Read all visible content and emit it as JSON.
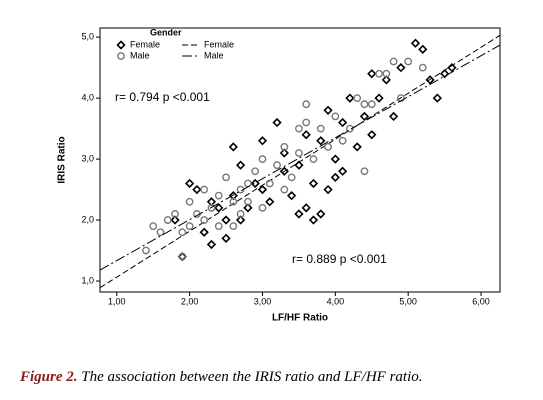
{
  "chart_data": {
    "type": "scatter",
    "xlabel": "LF/HF Ratio",
    "ylabel": "IRIS Ratio",
    "xlim": [
      0.77,
      6.26
    ],
    "ylim": [
      0.82,
      5.15
    ],
    "xticks": [
      {
        "value": 1,
        "label": "1,00"
      },
      {
        "value": 2,
        "label": "2,00"
      },
      {
        "value": 3,
        "label": "3,00"
      },
      {
        "value": 4,
        "label": "4,00"
      },
      {
        "value": 5,
        "label": "5,00"
      },
      {
        "value": 6,
        "label": "6,00"
      }
    ],
    "yticks": [
      {
        "value": 1,
        "label": "1,0"
      },
      {
        "value": 2,
        "label": "2,0"
      },
      {
        "value": 3,
        "label": "3,0"
      },
      {
        "value": 4,
        "label": "4,0"
      },
      {
        "value": 5,
        "label": "5,0"
      }
    ],
    "legend_title": "Gender",
    "annotations": [
      "r= 0.794   p <0.001",
      "r= 0.889   p <0.001"
    ],
    "series": [
      {
        "name": "Female",
        "marker": "diamond",
        "color": "#000000",
        "dash": "6,3",
        "x": [
          2.0,
          2.1,
          2.2,
          2.3,
          2.4,
          2.5,
          2.6,
          2.6,
          2.7,
          2.8,
          2.9,
          3.0,
          3.1,
          3.2,
          3.3,
          3.4,
          3.5,
          3.5,
          3.6,
          3.6,
          3.7,
          3.8,
          3.8,
          3.9,
          4.0,
          4.0,
          4.1,
          4.2,
          4.3,
          4.4,
          4.5,
          4.5,
          4.7,
          4.8,
          4.9,
          5.1,
          5.2,
          5.3,
          5.5,
          5.6,
          5.4,
          1.8,
          1.9,
          2.3,
          2.7,
          3.0,
          3.3,
          3.7,
          4.1,
          2.5,
          4.6,
          3.9
        ],
        "values": [
          2.6,
          2.5,
          1.8,
          1.6,
          2.2,
          2.0,
          3.2,
          2.4,
          2.9,
          2.2,
          2.6,
          2.5,
          2.3,
          3.6,
          3.1,
          2.4,
          2.9,
          2.1,
          3.4,
          2.2,
          2.6,
          3.3,
          2.1,
          3.8,
          3.0,
          2.7,
          3.6,
          4.0,
          3.2,
          3.7,
          3.4,
          4.4,
          4.3,
          3.7,
          4.5,
          4.9,
          4.8,
          4.3,
          4.4,
          4.5,
          4.0,
          2.0,
          1.4,
          2.3,
          2.0,
          3.3,
          2.8,
          2.0,
          2.8,
          1.7,
          4.0,
          2.5
        ],
        "fit_x": [
          0.77,
          6.26
        ],
        "fit_y": [
          0.89,
          5.03
        ]
      },
      {
        "name": "Male",
        "marker": "circle",
        "color": "#777777",
        "dash": "10,3,2,3",
        "x": [
          1.4,
          1.5,
          1.6,
          1.7,
          1.8,
          1.9,
          2.0,
          2.1,
          2.2,
          2.3,
          2.4,
          2.5,
          2.6,
          2.7,
          2.8,
          2.9,
          3.0,
          3.1,
          3.2,
          3.3,
          3.4,
          3.5,
          3.5,
          3.6,
          3.7,
          3.8,
          3.9,
          4.0,
          4.1,
          4.2,
          4.3,
          4.4,
          4.5,
          4.6,
          4.7,
          4.8,
          4.9,
          5.0,
          5.2,
          2.0,
          2.2,
          2.4,
          2.7,
          3.0,
          3.3,
          1.9,
          2.6,
          4.4,
          3.6,
          2.8
        ],
        "values": [
          1.5,
          1.9,
          1.8,
          2.0,
          2.1,
          1.4,
          2.3,
          2.1,
          2.5,
          2.2,
          2.4,
          2.7,
          2.3,
          2.5,
          2.6,
          2.8,
          3.0,
          2.6,
          2.9,
          3.2,
          2.7,
          3.1,
          3.5,
          3.6,
          3.0,
          3.5,
          3.2,
          3.7,
          3.3,
          3.5,
          4.0,
          3.9,
          3.9,
          4.4,
          4.4,
          4.6,
          4.0,
          4.6,
          4.5,
          1.9,
          2.0,
          1.9,
          2.1,
          2.2,
          2.5,
          1.8,
          1.9,
          2.8,
          3.9,
          2.3
        ],
        "fit_x": [
          0.77,
          6.26
        ],
        "fit_y": [
          1.18,
          4.87
        ]
      }
    ]
  },
  "caption": {
    "label": "Figure 2.",
    "text": "The association between the IRIS ratio and LF/HF ratio."
  }
}
